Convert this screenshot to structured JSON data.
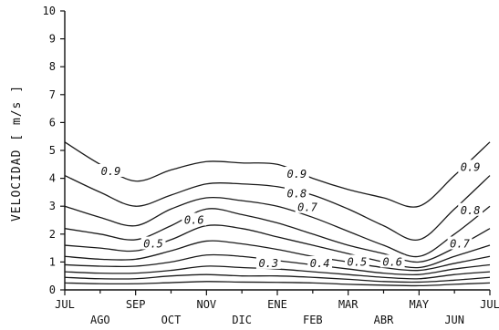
{
  "chart_data": {
    "type": "line",
    "ylabel": "VELOCIDAD [ m/s ]",
    "xlabel": "",
    "ylim": [
      0,
      10
    ],
    "yticks": [
      0,
      1,
      2,
      3,
      4,
      5,
      6,
      7,
      8,
      9,
      10
    ],
    "x_ticks_top_row": [
      "JUL",
      "SEP",
      "NOV",
      "ENE",
      "MAR",
      "MAY",
      "JUL"
    ],
    "x_ticks_bottom_row": [
      "AGO",
      "OCT",
      "DIC",
      "FEB",
      "ABR",
      "JUN"
    ],
    "x_months": [
      "JUL",
      "AGO",
      "SEP",
      "OCT",
      "NOV",
      "DIC",
      "ENE",
      "FEB",
      "MAR",
      "ABR",
      "MAY",
      "JUN",
      "JUL"
    ],
    "grid": false,
    "series": [
      {
        "values": [
          5.3,
          4.5,
          3.9,
          4.3,
          4.6,
          4.55,
          4.5,
          4.0,
          3.6,
          3.3,
          3.0,
          4.1,
          5.3
        ]
      },
      {
        "values": [
          4.1,
          3.5,
          3.0,
          3.4,
          3.8,
          3.8,
          3.7,
          3.4,
          2.9,
          2.3,
          1.8,
          2.9,
          4.1
        ]
      },
      {
        "values": [
          3.0,
          2.6,
          2.3,
          2.9,
          3.3,
          3.2,
          3.0,
          2.6,
          2.1,
          1.6,
          1.2,
          2.0,
          3.0
        ]
      },
      {
        "values": [
          2.2,
          2.0,
          1.8,
          2.3,
          2.9,
          2.7,
          2.4,
          2.0,
          1.6,
          1.3,
          1.0,
          1.5,
          2.2
        ]
      },
      {
        "values": [
          1.6,
          1.5,
          1.4,
          1.8,
          2.3,
          2.2,
          1.9,
          1.6,
          1.3,
          1.0,
          0.8,
          1.2,
          1.6
        ]
      },
      {
        "values": [
          1.2,
          1.1,
          1.1,
          1.4,
          1.75,
          1.65,
          1.45,
          1.2,
          1.0,
          0.8,
          0.7,
          0.95,
          1.2
        ]
      },
      {
        "values": [
          0.9,
          0.85,
          0.85,
          1.0,
          1.25,
          1.2,
          1.05,
          0.9,
          0.75,
          0.6,
          0.55,
          0.75,
          0.9
        ]
      },
      {
        "values": [
          0.65,
          0.6,
          0.6,
          0.7,
          0.85,
          0.8,
          0.75,
          0.65,
          0.55,
          0.45,
          0.4,
          0.55,
          0.65
        ]
      },
      {
        "values": [
          0.45,
          0.4,
          0.4,
          0.5,
          0.55,
          0.5,
          0.5,
          0.45,
          0.38,
          0.3,
          0.28,
          0.35,
          0.45
        ]
      },
      {
        "values": [
          0.25,
          0.22,
          0.22,
          0.26,
          0.3,
          0.28,
          0.27,
          0.25,
          0.2,
          0.17,
          0.15,
          0.2,
          0.25
        ]
      }
    ],
    "contour_labels": [
      {
        "text": "0.9",
        "x": 1.3,
        "y": 4.25
      },
      {
        "text": "0.6",
        "x": 3.65,
        "y": 2.5
      },
      {
        "text": "0.5",
        "x": 2.5,
        "y": 1.65
      },
      {
        "text": "0.9",
        "x": 6.55,
        "y": 4.15
      },
      {
        "text": "0.8",
        "x": 6.55,
        "y": 3.45
      },
      {
        "text": "0.7",
        "x": 6.85,
        "y": 2.95
      },
      {
        "text": "0.3",
        "x": 5.75,
        "y": 0.95
      },
      {
        "text": "0.4",
        "x": 7.2,
        "y": 0.95
      },
      {
        "text": "0.5",
        "x": 8.25,
        "y": 1.0
      },
      {
        "text": "0.6",
        "x": 9.25,
        "y": 1.0
      },
      {
        "text": "0.9",
        "x": 11.45,
        "y": 4.4
      },
      {
        "text": "0.8",
        "x": 11.45,
        "y": 2.85
      },
      {
        "text": "0.7",
        "x": 11.15,
        "y": 1.65
      }
    ]
  }
}
